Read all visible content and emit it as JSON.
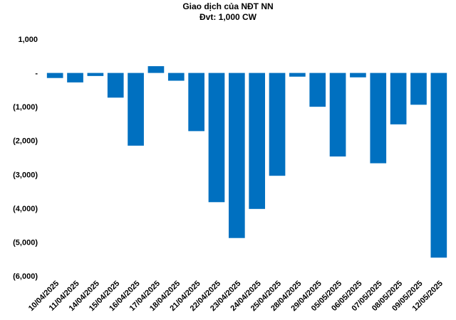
{
  "chart_data": {
    "type": "bar",
    "title": "Giao dịch của NĐT NN",
    "subtitle": "Đvt: 1,000 CW",
    "xlabel": "",
    "ylabel": "",
    "ylim": [
      -6000,
      1000
    ],
    "yticks": [
      1000,
      0,
      -1000,
      -2000,
      -3000,
      -4000,
      -5000,
      -6000
    ],
    "ytick_labels": [
      "1,000",
      "-",
      "(1,000)",
      "(2,000)",
      "(3,000)",
      "(4,000)",
      "(5,000)",
      "(6,000)"
    ],
    "bar_color": "#0070C0",
    "grid": false,
    "categories": [
      "10/04/2025",
      "11/04/2025",
      "14/04/2025",
      "15/04/2025",
      "16/04/2025",
      "17/04/2025",
      "18/04/2025",
      "21/04/2025",
      "22/04/2025",
      "23/04/2025",
      "24/04/2025",
      "25/04/2025",
      "28/04/2025",
      "29/04/2025",
      "05/05/2025",
      "06/05/2025",
      "07/05/2025",
      "08/05/2025",
      "09/05/2025",
      "12/05/2025"
    ],
    "values": [
      -150,
      -280,
      -90,
      -730,
      -2150,
      200,
      -230,
      -1720,
      -3820,
      -4880,
      -4020,
      -3040,
      -110,
      -1000,
      -2470,
      -130,
      -2670,
      -1520,
      -940,
      -5460
    ]
  }
}
